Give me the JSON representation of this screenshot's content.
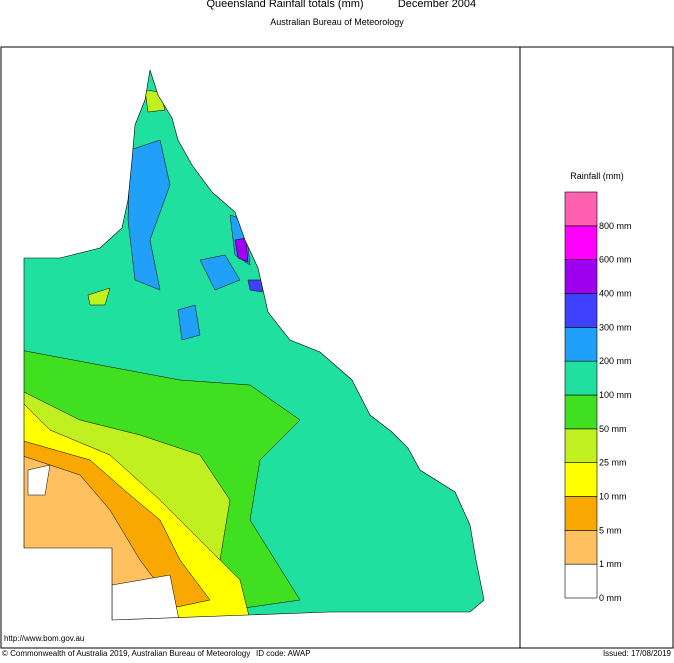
{
  "header": {
    "title": "Queensland Rainfall totals (mm)",
    "period": "December 2004",
    "subtitle": "Australian Bureau of Meteorology"
  },
  "legend": {
    "title": "Rainfall (mm)",
    "items": [
      {
        "label": "0 mm",
        "color": "#ffffff"
      },
      {
        "label": "1 mm",
        "color": "#ffc060"
      },
      {
        "label": "5 mm",
        "color": "#f8a800"
      },
      {
        "label": "10 mm",
        "color": "#ffff00"
      },
      {
        "label": "25 mm",
        "color": "#c0f020"
      },
      {
        "label": "50 mm",
        "color": "#40e020"
      },
      {
        "label": "100 mm",
        "color": "#20e0a0"
      },
      {
        "label": "200 mm",
        "color": "#20a0f8"
      },
      {
        "label": "300 mm",
        "color": "#4040ff"
      },
      {
        "label": "400 mm",
        "color": "#a000f0"
      },
      {
        "label": "600 mm",
        "color": "#ff00ff"
      },
      {
        "label": "800 mm",
        "color": "#ff60b0"
      }
    ]
  },
  "footer": {
    "url": "http://www.bom.gov.au",
    "copyright": "© Commonwealth of Australia 2019, Australian Bureau of Meteorology",
    "id_code": "ID code: AWAP",
    "issued": "Issued: 17/08/2019"
  }
}
